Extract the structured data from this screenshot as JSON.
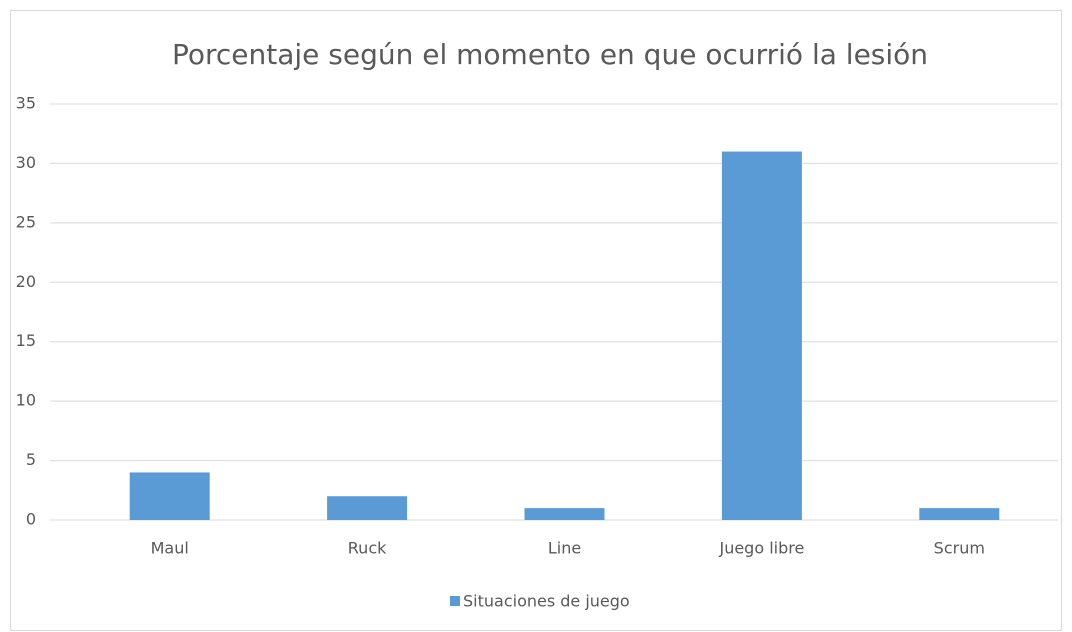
{
  "chart_data": {
    "type": "bar",
    "title": "Porcentaje según el momento en que ocurrió la lesión",
    "categories": [
      "Maul",
      "Ruck",
      "Line",
      "Juego libre",
      "Scrum"
    ],
    "series": [
      {
        "name": "Situaciones de juego",
        "color": "#5b9bd5",
        "values": [
          4,
          2,
          1,
          31,
          1
        ]
      }
    ],
    "ylim": [
      0,
      35
    ],
    "yticks": [
      0,
      5,
      10,
      15,
      20,
      25,
      30,
      35
    ],
    "grid": true,
    "legend": "bottom"
  }
}
